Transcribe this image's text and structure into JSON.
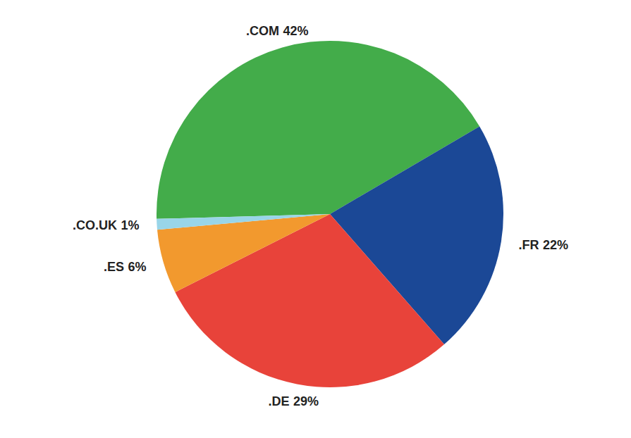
{
  "chart_data": {
    "type": "pie",
    "categories": [
      ".COM",
      ".FR",
      ".DE",
      ".ES",
      ".CO.UK"
    ],
    "values": [
      42,
      22,
      29,
      6,
      1
    ],
    "value_labels": [
      "42%",
      "22%",
      "29%",
      "6%",
      "1%"
    ],
    "colors": [
      "#43ac4a",
      "#1b4896",
      "#e8433a",
      "#f2992e",
      "#99d5e8"
    ],
    "data_labels": true
  }
}
